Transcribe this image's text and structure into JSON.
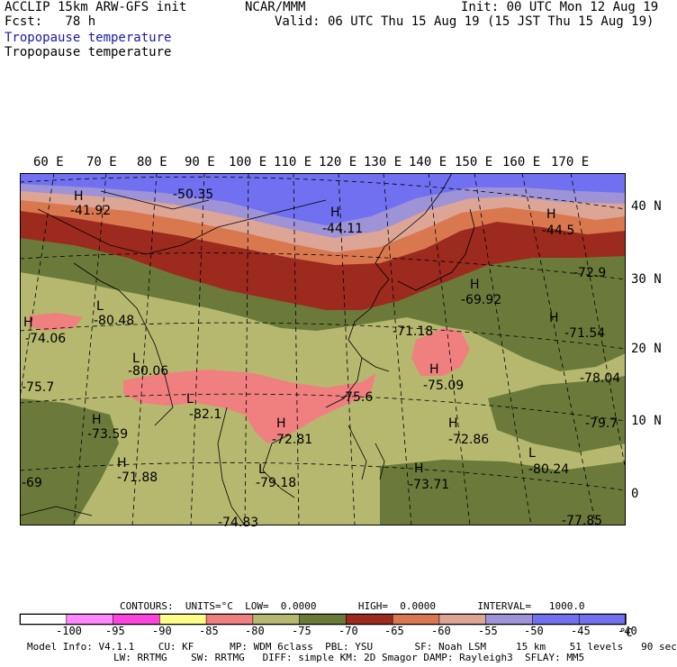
{
  "header": {
    "line1_left": "ACCLIP 15km ARW-GFS init",
    "line1_center": "NCAR/MMM",
    "line1_right": "Init: 00 UTC Mon 12 Aug 19",
    "line2_left": "Fcst:   78 h",
    "line2_right": "Valid: 06 UTC Thu 15 Aug 19 (15 JST Thu 15 Aug 19)",
    "field_title_blue": "Tropopause temperature",
    "field_title_black": "Tropopause temperature"
  },
  "map": {
    "lon_labels": [
      "60 E",
      "70 E",
      "80 E",
      "90 E",
      "100 E",
      "110 E",
      "120 E",
      "130 E",
      "140 E",
      "150 E",
      "160 E",
      "170 E"
    ],
    "lat_labels": [
      "40 N",
      "30 N",
      "20 N",
      "10 N",
      "0"
    ],
    "pressure_marks": [
      {
        "kind": "H",
        "value": "-41.92"
      },
      {
        "kind": "",
        "value": "-50.35"
      },
      {
        "kind": "H",
        "value": "-44.11"
      },
      {
        "kind": "H",
        "value": "-44.5"
      },
      {
        "kind": "",
        "value": "-72.9"
      },
      {
        "kind": "L",
        "value": "-80.48"
      },
      {
        "kind": "H",
        "value": "-74.06"
      },
      {
        "kind": "H",
        "value": "-69.92"
      },
      {
        "kind": "",
        "value": "-71.18"
      },
      {
        "kind": "H",
        "value": "-71.54"
      },
      {
        "kind": "L",
        "value": "-80.06"
      },
      {
        "kind": "H",
        "value": "-75.09"
      },
      {
        "kind": "",
        "value": "-78.04"
      },
      {
        "kind": "",
        "value": "-75.7"
      },
      {
        "kind": "L",
        "value": "-82.1"
      },
      {
        "kind": "",
        "value": "-75.6"
      },
      {
        "kind": "H",
        "value": "-73.59"
      },
      {
        "kind": "H",
        "value": "-72.81"
      },
      {
        "kind": "H",
        "value": "-72.86"
      },
      {
        "kind": "",
        "value": "-79.7"
      },
      {
        "kind": "H",
        "value": "-71.88"
      },
      {
        "kind": "L",
        "value": "-79.18"
      },
      {
        "kind": "H",
        "value": "-73.71"
      },
      {
        "kind": "L",
        "value": "-80.24"
      },
      {
        "kind": "",
        "value": "-69"
      },
      {
        "kind": "",
        "value": "-77.85"
      },
      {
        "kind": "",
        "value": "-74.83"
      }
    ],
    "band_colors": {
      "lt_-85": "#f08080",
      "-85_-75": "#b5b86e",
      "-75_-70": "#6b7a3a",
      "-70_-65": "#9c2a1e",
      "-65_-60": "#d9784e",
      "-60_-55": "#dca596",
      "-55_-50": "#9d93d6",
      "-50_-40": "#7070f0"
    }
  },
  "legend": {
    "contours_line": "CONTOURS:  UNITS=°C  LOW=  0.0000       HIGH=  0.0000       INTERVAL=   1000.0",
    "colors": [
      "#ffffff",
      "#ff88ff",
      "#ff44dd",
      "#ffff88",
      "#f08080",
      "#b5b86e",
      "#6b7a3a",
      "#9c2a1e",
      "#d9784e",
      "#dca596",
      "#9d93d6",
      "#7070f0",
      "#7070f0"
    ],
    "ticks": [
      "-100",
      "-95",
      "-90",
      "-85",
      "-80",
      "-75",
      "-70",
      "-65",
      "-60",
      "-55",
      "-50",
      "-45",
      "-40",
      "°C"
    ]
  },
  "footer": {
    "line1": "Model Info: V4.1.1    CU: KF      MP: WDM 6class  PBL: YSU       SF: Noah LSM     15 km    51 levels   90 sec",
    "line2": "LW: RRTMG    SW: RRTMG   DIFF: simple KM: 2D Smagor DAMP: Rayleigh3  SFLAY: MM5"
  }
}
